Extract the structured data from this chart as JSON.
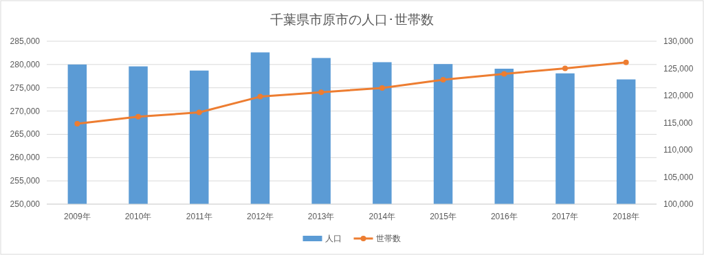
{
  "chart_data": {
    "type": "bar",
    "title": "千葉県市原市の人口･世帯数",
    "categories": [
      "2009年",
      "2010年",
      "2011年",
      "2012年",
      "2013年",
      "2014年",
      "2015年",
      "2016年",
      "2017年",
      "2018年"
    ],
    "series": [
      {
        "name": "人口",
        "color": "#5b9bd5",
        "values": [
          280000,
          279600,
          278700,
          282600,
          281400,
          280500,
          280100,
          279100,
          278100,
          276800
        ]
      },
      {
        "name": "世帯数",
        "type": "line",
        "axis": "y2",
        "marker": "circle",
        "color": "#ed7d31",
        "values": [
          114800,
          116100,
          116900,
          119800,
          120600,
          121400,
          122900,
          124000,
          125000,
          126100
        ]
      }
    ],
    "ylim": [
      250000,
      285000
    ],
    "yticks": [
      {
        "value": 250000,
        "label": "250,000"
      },
      {
        "value": 255000,
        "label": "255,000"
      },
      {
        "value": 260000,
        "label": "260,000"
      },
      {
        "value": 265000,
        "label": "265,000"
      },
      {
        "value": 270000,
        "label": "270,000"
      },
      {
        "value": 275000,
        "label": "275,000"
      },
      {
        "value": 280000,
        "label": "280,000"
      },
      {
        "value": 285000,
        "label": "285,000"
      }
    ],
    "y2lim": [
      100000,
      130000
    ],
    "y2ticks": [
      {
        "value": 100000,
        "label": "100,000"
      },
      {
        "value": 105000,
        "label": "105,000"
      },
      {
        "value": 110000,
        "label": "110,000"
      },
      {
        "value": 115000,
        "label": "115,000"
      },
      {
        "value": 120000,
        "label": "120,000"
      },
      {
        "value": 125000,
        "label": "125,000"
      },
      {
        "value": 130000,
        "label": "130,000"
      }
    ],
    "grid": "y",
    "legend": "bottom"
  }
}
